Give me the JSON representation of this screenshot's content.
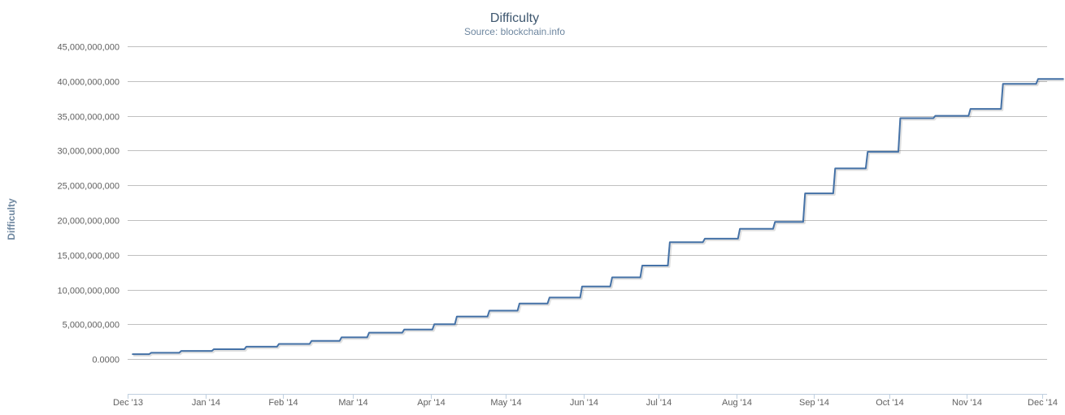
{
  "chart_data": {
    "type": "line",
    "title": "Difficulty",
    "subtitle": "Source: blockchain.info",
    "ylabel": "Difficulty",
    "xlabel": "",
    "ylim": [
      -5000000000,
      45000000000
    ],
    "xlim": [
      "2013-12-01",
      "2014-12-03"
    ],
    "grid": true,
    "legend": "none",
    "y_ticks": [
      {
        "value": 0,
        "label": "0.0000"
      },
      {
        "value": 5000000000,
        "label": "5,000,000,000"
      },
      {
        "value": 10000000000,
        "label": "10,000,000,000"
      },
      {
        "value": 15000000000,
        "label": "15,000,000,000"
      },
      {
        "value": 20000000000,
        "label": "20,000,000,000"
      },
      {
        "value": 25000000000,
        "label": "25,000,000,000"
      },
      {
        "value": 30000000000,
        "label": "30,000,000,000"
      },
      {
        "value": 35000000000,
        "label": "35,000,000,000"
      },
      {
        "value": 40000000000,
        "label": "40,000,000,000"
      },
      {
        "value": 45000000000,
        "label": "45,000,000,000"
      }
    ],
    "x_ticks": [
      {
        "date": "2013-12-01",
        "label": "Dec '13"
      },
      {
        "date": "2014-01-01",
        "label": "Jan '14"
      },
      {
        "date": "2014-02-01",
        "label": "Feb '14"
      },
      {
        "date": "2014-03-01",
        "label": "Mar '14"
      },
      {
        "date": "2014-04-01",
        "label": "Apr '14"
      },
      {
        "date": "2014-05-01",
        "label": "May '14"
      },
      {
        "date": "2014-06-01",
        "label": "Jun '14"
      },
      {
        "date": "2014-07-01",
        "label": "Jul '14"
      },
      {
        "date": "2014-08-01",
        "label": "Aug '14"
      },
      {
        "date": "2014-09-01",
        "label": "Sep '14"
      },
      {
        "date": "2014-10-01",
        "label": "Oct '14"
      },
      {
        "date": "2014-11-01",
        "label": "Nov '14"
      },
      {
        "date": "2014-12-01",
        "label": "Dec '14"
      }
    ],
    "series": [
      {
        "color": "#4572a7",
        "steps": [
          {
            "date": "2013-12-03",
            "value": 707000000
          },
          {
            "date": "2013-12-10",
            "value": 908000000
          },
          {
            "date": "2013-12-22",
            "value": 1180000000
          },
          {
            "date": "2014-01-04",
            "value": 1420000000
          },
          {
            "date": "2014-01-17",
            "value": 1790000000
          },
          {
            "date": "2014-01-30",
            "value": 2190000000
          },
          {
            "date": "2014-02-12",
            "value": 2620000000
          },
          {
            "date": "2014-02-24",
            "value": 3130000000
          },
          {
            "date": "2014-03-07",
            "value": 3810000000
          },
          {
            "date": "2014-03-21",
            "value": 4250000000
          },
          {
            "date": "2014-04-02",
            "value": 5010000000
          },
          {
            "date": "2014-04-11",
            "value": 6120000000
          },
          {
            "date": "2014-04-24",
            "value": 6980000000
          },
          {
            "date": "2014-05-06",
            "value": 8000000000
          },
          {
            "date": "2014-05-18",
            "value": 8850000000
          },
          {
            "date": "2014-05-31",
            "value": 10460000000
          },
          {
            "date": "2014-06-12",
            "value": 11760000000
          },
          {
            "date": "2014-06-24",
            "value": 13460000000
          },
          {
            "date": "2014-07-05",
            "value": 16820000000
          },
          {
            "date": "2014-07-19",
            "value": 17330000000
          },
          {
            "date": "2014-08-02",
            "value": 18740000000
          },
          {
            "date": "2014-08-16",
            "value": 19730000000
          },
          {
            "date": "2014-08-28",
            "value": 23840000000
          },
          {
            "date": "2014-09-09",
            "value": 27430000000
          },
          {
            "date": "2014-09-22",
            "value": 29830000000
          },
          {
            "date": "2014-10-05",
            "value": 34660000000
          },
          {
            "date": "2014-10-19",
            "value": 35000000000
          },
          {
            "date": "2014-11-02",
            "value": 35990000000
          },
          {
            "date": "2014-11-15",
            "value": 39600000000
          },
          {
            "date": "2014-11-29",
            "value": 40300000000
          },
          {
            "date": "2014-12-09",
            "value": 40300000000
          }
        ]
      }
    ]
  }
}
